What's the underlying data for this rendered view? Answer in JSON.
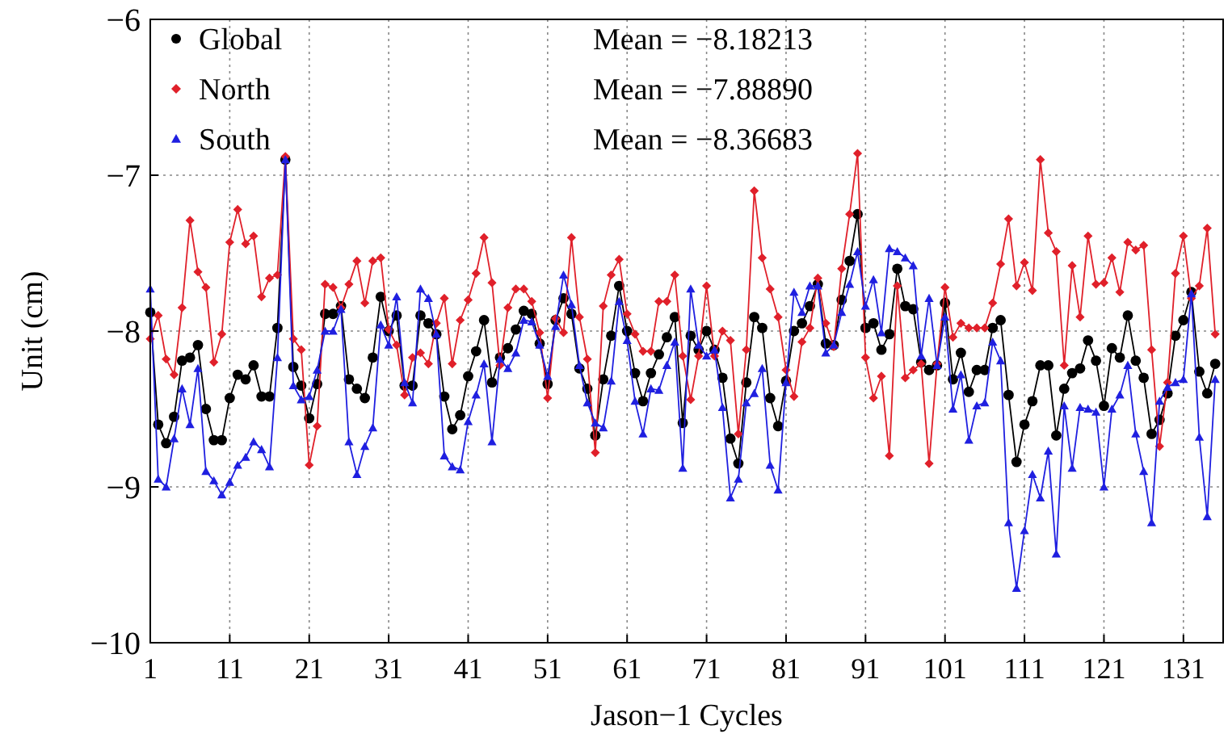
{
  "chart_data": {
    "type": "line",
    "xlabel": "Jason−1 Cycles",
    "ylabel": "Unit (cm)",
    "x": [
      1,
      2,
      3,
      4,
      5,
      6,
      7,
      8,
      9,
      10,
      11,
      12,
      13,
      14,
      15,
      16,
      17,
      18,
      19,
      20,
      21,
      22,
      23,
      24,
      25,
      26,
      27,
      28,
      29,
      30,
      31,
      32,
      33,
      34,
      35,
      36,
      37,
      38,
      39,
      40,
      41,
      42,
      43,
      44,
      45,
      46,
      47,
      48,
      49,
      50,
      51,
      52,
      53,
      54,
      55,
      56,
      57,
      58,
      59,
      60,
      61,
      62,
      63,
      64,
      65,
      66,
      67,
      68,
      69,
      70,
      71,
      72,
      73,
      74,
      75,
      76,
      77,
      78,
      79,
      80,
      81,
      82,
      83,
      84,
      85,
      86,
      87,
      88,
      89,
      90,
      91,
      92,
      93,
      94,
      95,
      96,
      97,
      98,
      99,
      100,
      101,
      102,
      103,
      104,
      105,
      106,
      107,
      108,
      109,
      110,
      111,
      112,
      113,
      114,
      115,
      116,
      117,
      118,
      119,
      120,
      121,
      122,
      123,
      124,
      125,
      126,
      127,
      128,
      129,
      130,
      131,
      132,
      133,
      134,
      135
    ],
    "series": [
      {
        "name": "Global",
        "color": "#000000",
        "marker": "circle",
        "values": [
          -7.88,
          -8.6,
          -8.72,
          -8.55,
          -8.19,
          -8.17,
          -8.09,
          -8.5,
          -8.7,
          -8.7,
          -8.43,
          -8.28,
          -8.31,
          -8.22,
          -8.42,
          -8.42,
          -7.98,
          -6.9,
          -8.23,
          -8.35,
          -8.56,
          -8.34,
          -7.89,
          -7.89,
          -7.84,
          -8.31,
          -8.37,
          -8.43,
          -8.17,
          -7.78,
          -8.0,
          -7.9,
          -8.35,
          -8.35,
          -7.9,
          -7.95,
          -8.02,
          -8.42,
          -8.63,
          -8.54,
          -8.29,
          -8.13,
          -7.93,
          -8.33,
          -8.17,
          -8.11,
          -7.99,
          -7.87,
          -7.89,
          -8.08,
          -8.34,
          -7.93,
          -7.79,
          -7.89,
          -8.24,
          -8.37,
          -8.67,
          -8.31,
          -8.03,
          -7.71,
          -8.0,
          -8.27,
          -8.45,
          -8.27,
          -8.15,
          -8.04,
          -7.91,
          -8.59,
          -8.03,
          -8.12,
          -8.0,
          -8.12,
          -8.3,
          -8.69,
          -8.85,
          -8.33,
          -7.91,
          -7.98,
          -8.43,
          -8.61,
          -8.32,
          -8.0,
          -7.95,
          -7.84,
          -7.7,
          -8.08,
          -8.09,
          -7.8,
          -7.55,
          -7.25,
          -7.98,
          -7.95,
          -8.12,
          -8.02,
          -7.6,
          -7.84,
          -7.86,
          -8.2,
          -8.25,
          -8.22,
          -7.82,
          -8.31,
          -8.14,
          -8.39,
          -8.25,
          -8.25,
          -7.98,
          -7.93,
          -8.41,
          -8.84,
          -8.6,
          -8.45,
          -8.22,
          -8.22,
          -8.67,
          -8.37,
          -8.27,
          -8.24,
          -8.06,
          -8.19,
          -8.48,
          -8.11,
          -8.17,
          -7.9,
          -8.19,
          -8.3,
          -8.66,
          -8.57,
          -8.4,
          -8.03,
          -7.93,
          -7.75,
          -8.26,
          -8.4,
          -8.21
        ]
      },
      {
        "name": "North",
        "color": "#e0202a",
        "marker": "diamond",
        "values": [
          -8.05,
          -7.9,
          -8.18,
          -8.28,
          -7.85,
          -7.29,
          -7.62,
          -7.72,
          -8.2,
          -8.02,
          -7.43,
          -7.22,
          -7.44,
          -7.39,
          -7.78,
          -7.66,
          -7.64,
          -6.88,
          -8.05,
          -8.12,
          -8.86,
          -8.61,
          -7.7,
          -7.72,
          -7.85,
          -7.7,
          -7.55,
          -7.82,
          -7.55,
          -7.53,
          -7.99,
          -8.09,
          -8.41,
          -8.17,
          -8.14,
          -8.21,
          -7.95,
          -7.79,
          -8.21,
          -7.93,
          -7.8,
          -7.63,
          -7.4,
          -7.69,
          -8.22,
          -7.85,
          -7.73,
          -7.73,
          -7.81,
          -8.01,
          -8.43,
          -7.92,
          -8.01,
          -7.4,
          -7.91,
          -8.18,
          -8.78,
          -7.84,
          -7.64,
          -7.54,
          -7.89,
          -8.02,
          -8.13,
          -8.13,
          -7.81,
          -7.81,
          -7.64,
          -8.16,
          -8.44,
          -8.16,
          -7.71,
          -8.16,
          -8.0,
          -8.06,
          -8.66,
          -8.12,
          -7.1,
          -7.53,
          -7.73,
          -7.91,
          -8.25,
          -8.42,
          -8.07,
          -7.98,
          -7.66,
          -7.95,
          -8.1,
          -7.6,
          -7.25,
          -6.86,
          -8.17,
          -8.43,
          -8.29,
          -8.8,
          -7.71,
          -8.3,
          -8.25,
          -8.21,
          -8.85,
          -8.21,
          -7.72,
          -8.04,
          -7.95,
          -7.98,
          -7.98,
          -7.98,
          -7.82,
          -7.57,
          -7.28,
          -7.71,
          -7.56,
          -7.74,
          -6.9,
          -7.37,
          -7.49,
          -8.22,
          -7.58,
          -7.91,
          -7.39,
          -7.7,
          -7.69,
          -7.53,
          -7.75,
          -7.43,
          -7.48,
          -7.45,
          -8.12,
          -8.74,
          -8.33,
          -7.63,
          -7.39,
          -7.79,
          -7.71,
          -7.34,
          -8.02
        ]
      },
      {
        "name": "South",
        "color": "#1f1fe0",
        "marker": "triangle",
        "values": [
          -7.73,
          -8.95,
          -9.0,
          -8.69,
          -8.37,
          -8.6,
          -8.24,
          -8.9,
          -8.96,
          -9.05,
          -8.97,
          -8.86,
          -8.81,
          -8.71,
          -8.76,
          -8.87,
          -8.17,
          -6.9,
          -8.35,
          -8.44,
          -8.42,
          -8.25,
          -8.0,
          -8.0,
          -7.86,
          -8.71,
          -8.92,
          -8.74,
          -8.62,
          -7.96,
          -8.09,
          -7.78,
          -8.33,
          -8.46,
          -7.73,
          -7.79,
          -8.02,
          -8.8,
          -8.87,
          -8.89,
          -8.58,
          -8.41,
          -8.21,
          -8.71,
          -8.18,
          -8.24,
          -8.14,
          -7.93,
          -7.94,
          -8.09,
          -8.29,
          -7.97,
          -7.64,
          -7.83,
          -8.22,
          -8.46,
          -8.59,
          -8.62,
          -8.32,
          -7.81,
          -8.06,
          -8.45,
          -8.66,
          -8.37,
          -8.38,
          -8.22,
          -8.07,
          -8.88,
          -7.73,
          -8.09,
          -8.16,
          -8.12,
          -8.49,
          -9.07,
          -8.95,
          -8.46,
          -8.4,
          -8.24,
          -8.86,
          -9.02,
          -8.33,
          -7.75,
          -7.88,
          -7.71,
          -7.71,
          -8.14,
          -8.09,
          -7.88,
          -7.7,
          -7.49,
          -7.84,
          -7.67,
          -8.01,
          -7.47,
          -7.49,
          -7.53,
          -7.58,
          -8.16,
          -7.79,
          -8.22,
          -7.91,
          -8.5,
          -8.28,
          -8.7,
          -8.48,
          -8.46,
          -8.07,
          -8.19,
          -9.23,
          -9.65,
          -9.28,
          -8.92,
          -9.07,
          -8.77,
          -9.43,
          -8.48,
          -8.88,
          -8.49,
          -8.5,
          -8.52,
          -9.0,
          -8.5,
          -8.41,
          -8.22,
          -8.66,
          -8.9,
          -9.23,
          -8.45,
          -8.36,
          -8.33,
          -8.31,
          -7.76,
          -8.68,
          -9.19,
          -8.31
        ]
      }
    ],
    "xlim": [
      1,
      136
    ],
    "xticks": [
      1,
      11,
      21,
      31,
      41,
      51,
      61,
      71,
      81,
      91,
      101,
      111,
      121,
      131
    ],
    "ylim": [
      -10,
      -6
    ],
    "yticks": [
      {
        "value": -10,
        "label": "−10"
      },
      {
        "value": -9,
        "label": "−9"
      },
      {
        "value": -8,
        "label": "−8"
      },
      {
        "value": -7,
        "label": "−7"
      },
      {
        "value": -6,
        "label": "−6"
      }
    ],
    "grid": true,
    "legend": "top left",
    "line_style": "solid",
    "annotations": [
      "Mean = −8.18213",
      "Mean = −7.88890",
      "Mean = −8.36683"
    ]
  }
}
